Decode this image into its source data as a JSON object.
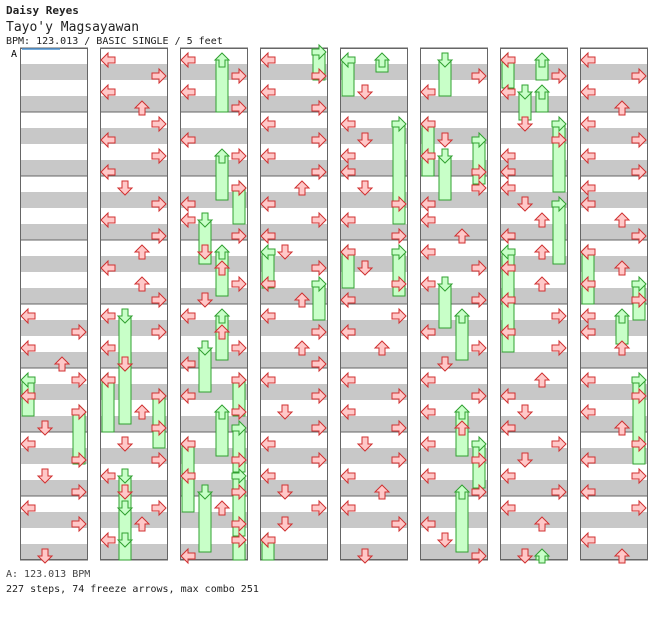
{
  "header": {
    "artist": "Daisy Reyes",
    "song": "Tayo'y Magsayawan",
    "info": "BPM: 123.013 / BASIC SINGLE / 5 feet"
  },
  "chart_marker": "A",
  "footer": {
    "bpm_line": "A: 123.013 BPM",
    "stats_line": "227 steps, 74 freeze arrows, max combo 251"
  },
  "colors": {
    "arrow_fill": "#ffc8c8",
    "arrow_stroke": "#d03030",
    "freeze_fill": "#c8ffc8",
    "freeze_stroke": "#30a030",
    "stripe_dark": "#c8c8c8",
    "marker_line": "#4a90d0"
  },
  "chart_data": {
    "type": "step-chart",
    "lanes": [
      "left",
      "down",
      "up",
      "right"
    ],
    "columns": 8,
    "measures_per_column": 8
  }
}
